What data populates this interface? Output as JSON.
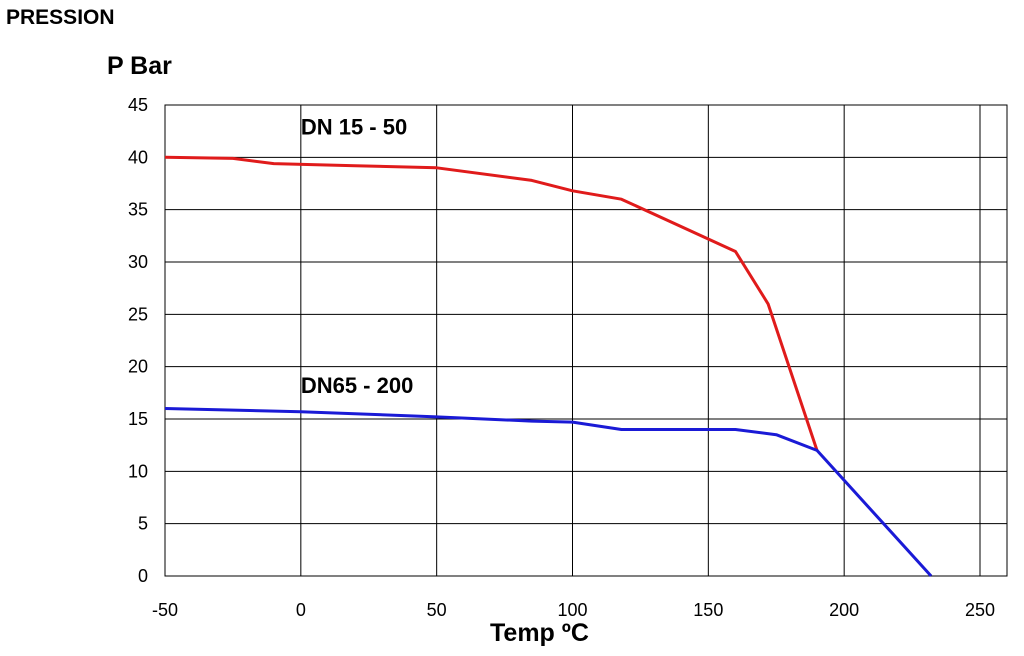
{
  "header": {
    "title": "PRESSION"
  },
  "chart_data": {
    "type": "line",
    "title": "PRESSION",
    "ylabel": "P Bar",
    "xlabel": "Temp ºC",
    "xlim": [
      -50,
      260
    ],
    "ylim": [
      0,
      45
    ],
    "x_ticks": [
      -50,
      0,
      50,
      100,
      150,
      200,
      250
    ],
    "y_ticks": [
      0,
      5,
      10,
      15,
      20,
      25,
      30,
      35,
      40,
      45
    ],
    "grid": true,
    "series": [
      {
        "name": "DN 15 - 50",
        "color": "#e01b1b",
        "points": [
          [
            -50,
            40
          ],
          [
            -25,
            39.9
          ],
          [
            -10,
            39.4
          ],
          [
            20,
            39.2
          ],
          [
            50,
            39
          ],
          [
            85,
            37.8
          ],
          [
            100,
            36.8
          ],
          [
            118,
            36
          ],
          [
            160,
            31
          ],
          [
            172,
            26
          ],
          [
            190,
            12
          ]
        ]
      },
      {
        "name": "DN65 - 200",
        "color": "#1a1ad6",
        "points": [
          [
            -50,
            16
          ],
          [
            0,
            15.7
          ],
          [
            50,
            15.2
          ],
          [
            85,
            14.8
          ],
          [
            100,
            14.7
          ],
          [
            118,
            14
          ],
          [
            160,
            14
          ],
          [
            175,
            13.5
          ],
          [
            190,
            12
          ],
          [
            232,
            0
          ]
        ]
      }
    ]
  }
}
